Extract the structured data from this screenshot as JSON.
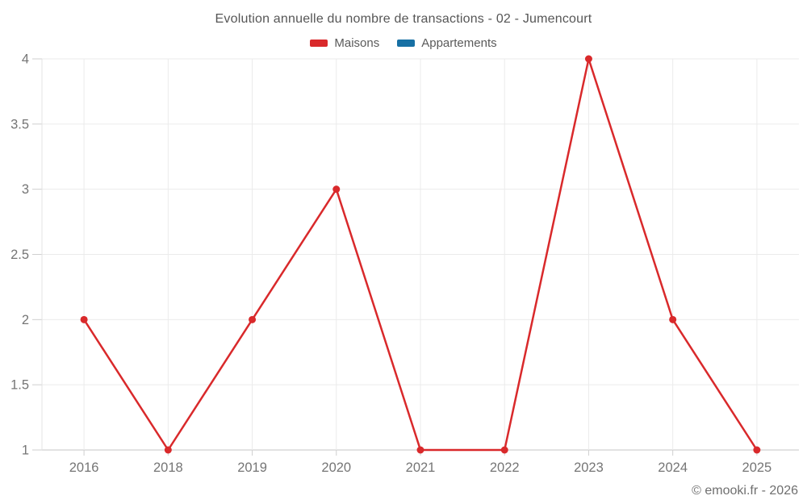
{
  "title": "Evolution annuelle du nombre de transactions - 02 - Jumencourt",
  "footer": "© emooki.fr - 2026",
  "colors": {
    "maisons": "#d9292b",
    "appartements": "#1770a4",
    "gridline": "#ebebeb",
    "axis_line": "#c6c6c6",
    "tick": "#cfcfcf",
    "label_text": "#757575"
  },
  "chart_data": {
    "type": "line",
    "title": "Evolution annuelle du nombre de transactions - 02 - Jumencourt",
    "categories": [
      "2016",
      "2018",
      "2019",
      "2020",
      "2021",
      "2022",
      "2023",
      "2024",
      "2025"
    ],
    "series": [
      {
        "name": "Maisons",
        "color": "#d9292b",
        "values": [
          2,
          1,
          2,
          3,
          1,
          1,
          4,
          2,
          1
        ]
      },
      {
        "name": "Appartements",
        "color": "#1770a4",
        "values": []
      }
    ],
    "xlabel": "",
    "ylabel": "",
    "ylim": [
      1,
      4
    ],
    "yticks": [
      1,
      1.5,
      2,
      2.5,
      3,
      3.5,
      4
    ],
    "grid": true,
    "legend_position": "top"
  }
}
